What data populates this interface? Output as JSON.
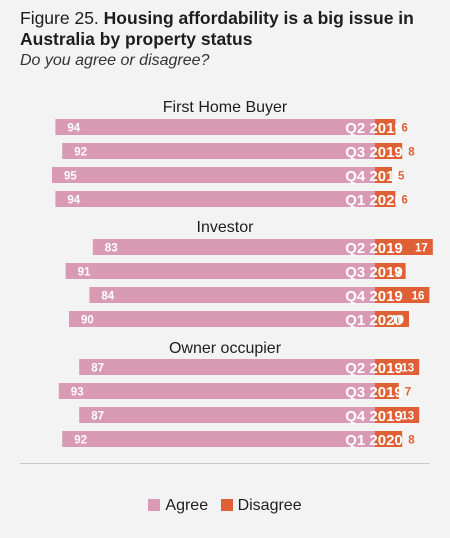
{
  "title": {
    "figure_label": "Figure 25.",
    "text": "Housing affordability is a big issue in Australia by property status",
    "subtitle": "Do you agree or disagree?"
  },
  "colors": {
    "agree": "#d99bb3",
    "disagree": "#df6035",
    "background": "#f3f3f3"
  },
  "legend": {
    "agree_label": "Agree",
    "disagree_label": "Disagree"
  },
  "chart_data": {
    "type": "bar",
    "orientation": "horizontal-stacked",
    "title": "Housing affordability is a big issue in Australia by property status",
    "subtitle": "Do you agree or disagree?",
    "xlim": [
      0,
      100
    ],
    "grid": false,
    "legend_position": "bottom",
    "groups": [
      {
        "name": "First Home Buyer",
        "categories": [
          "Q2 2019",
          "Q3 2019",
          "Q4 2019",
          "Q1 2020"
        ],
        "series": [
          {
            "name": "Agree",
            "values": [
              94,
              92,
              95,
              94
            ]
          },
          {
            "name": "Disagree",
            "values": [
              6,
              8,
              5,
              6
            ]
          }
        ]
      },
      {
        "name": "Investor",
        "categories": [
          "Q2 2019",
          "Q3 2019",
          "Q4 2019",
          "Q1 2020"
        ],
        "series": [
          {
            "name": "Agree",
            "values": [
              83,
              91,
              84,
              90
            ]
          },
          {
            "name": "Disagree",
            "values": [
              17,
              9,
              16,
              10
            ]
          }
        ]
      },
      {
        "name": "Owner occupier",
        "categories": [
          "Q2 2019",
          "Q3 2019",
          "Q4 2019",
          "Q1 2020"
        ],
        "series": [
          {
            "name": "Agree",
            "values": [
              87,
              93,
              87,
              92
            ]
          },
          {
            "name": "Disagree",
            "values": [
              13,
              7,
              13,
              8
            ]
          }
        ]
      }
    ]
  }
}
